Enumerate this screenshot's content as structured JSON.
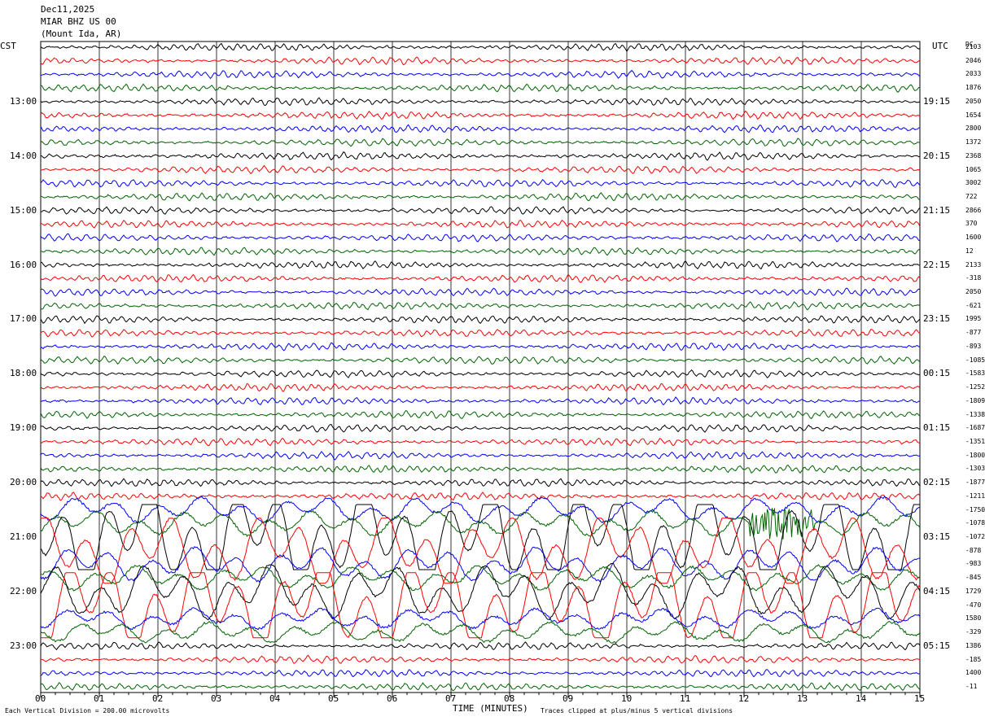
{
  "header": {
    "date": "Dec11,2025",
    "station": "MIAR BHZ US 00",
    "location": "(Mount Ida, AR)"
  },
  "left_axis_label": "CST",
  "right_axis_label": "UTC",
  "dc_label": "DC",
  "footer": {
    "scale_note": "Each Vertical Division =  200.00 microvolts",
    "xlabel": "TIME (MINUTES)",
    "clip_note": "Traces clipped at plus/minus 5 vertical divisions"
  },
  "colors": [
    "#000000",
    "#ff0000",
    "#0000ff",
    "#006400"
  ],
  "chart_data": {
    "type": "line",
    "title": "MIAR BHZ US 00",
    "xlabel": "TIME (MINUTES)",
    "xlim": [
      0,
      15
    ],
    "x_ticks": [
      "00",
      "01",
      "02",
      "03",
      "04",
      "05",
      "06",
      "07",
      "08",
      "09",
      "10",
      "11",
      "12",
      "13",
      "14",
      "15"
    ],
    "rows_per_hour": 4,
    "row_minutes": 15,
    "traces_count": 48,
    "cst_hour_labels": [
      "13:00",
      "14:00",
      "15:00",
      "16:00",
      "17:00",
      "18:00",
      "19:00",
      "20:00",
      "21:00",
      "22:00",
      "23:00"
    ],
    "utc_hour_labels": [
      "19:15",
      "20:15",
      "21:15",
      "22:15",
      "23:15",
      "00:15",
      "01:15",
      "02:15",
      "03:15",
      "04:15",
      "05:15"
    ],
    "first_labeled_row": 4,
    "dc_offsets": [
      "2103",
      "2046",
      "2033",
      "1876",
      "2050",
      "1654",
      "2800",
      "1372",
      "2368",
      "1065",
      "3002",
      "722",
      "2866",
      "370",
      "1600",
      "12",
      "2133",
      "-318",
      "2050",
      "-621",
      "1995",
      "-877",
      "-893",
      "-1085",
      "-1583",
      "-1252",
      "-1809",
      "-1338",
      "-1687",
      "-1351",
      "-1800",
      "-1303",
      "-1877",
      "-1211",
      "-1750",
      "-1078",
      "-1072",
      "-878",
      "-983",
      "-845",
      "1729",
      "-470",
      "1580",
      "-329",
      "1386",
      "-185",
      "1400",
      "-11"
    ],
    "event": {
      "description": "large-amplitude clipped traces",
      "rows": [
        34,
        43
      ],
      "local_burst_row": 35,
      "local_burst_minute_range": [
        12.1,
        13.2
      ]
    },
    "clip_divisions": 5,
    "scale_microvolts_per_division": 200.0
  }
}
